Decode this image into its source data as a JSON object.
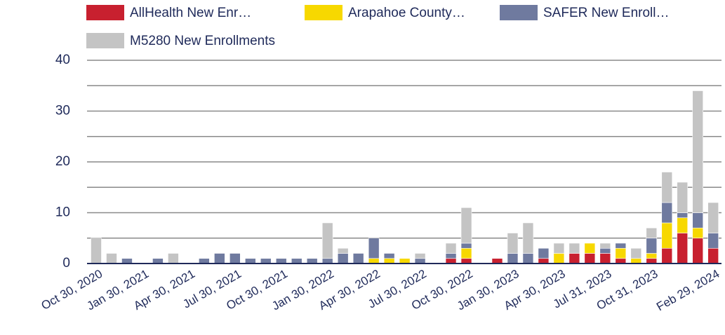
{
  "chart_data": {
    "type": "stacked_bar",
    "categories": [
      "Oct 30, 2020",
      null,
      null,
      "Jan 30, 2021",
      null,
      null,
      "Apr 30, 2021",
      null,
      null,
      "Jul 30, 2021",
      null,
      null,
      "Oct 30, 2021",
      null,
      null,
      "Jan 30, 2022",
      null,
      null,
      "Apr 30, 2022",
      null,
      null,
      "Jul 30, 2022",
      null,
      null,
      "Oct 30, 2022",
      null,
      null,
      "Jan 30, 2023",
      null,
      null,
      "Apr 30, 2023",
      null,
      null,
      "Jul 31, 2023",
      null,
      null,
      "Oct 31, 2023",
      null,
      null,
      null,
      "Feb 29, 2024"
    ],
    "series": [
      {
        "name": "AllHealth New Enr…",
        "color": "#c8202f",
        "values": [
          0,
          0,
          0,
          0,
          0,
          0,
          0,
          0,
          0,
          0,
          0,
          0,
          0,
          0,
          0,
          0,
          0,
          0,
          0,
          0,
          0,
          0,
          0,
          1,
          1,
          0,
          1,
          0,
          0,
          1,
          0,
          2,
          2,
          2,
          1,
          0,
          1,
          3,
          6,
          5,
          3
        ]
      },
      {
        "name": "Arapahoe County…",
        "color": "#f7d800",
        "values": [
          0,
          0,
          0,
          0,
          0,
          0,
          0,
          0,
          0,
          0,
          0,
          0,
          0,
          0,
          0,
          0,
          0,
          0,
          1,
          1,
          1,
          0,
          0,
          0,
          2,
          0,
          0,
          0,
          0,
          0,
          2,
          0,
          2,
          0,
          2,
          1,
          1,
          5,
          3,
          2,
          0
        ]
      },
      {
        "name": "SAFER New Enroll…",
        "color": "#6f7a9f",
        "values": [
          0,
          0,
          1,
          0,
          1,
          0,
          0,
          1,
          2,
          2,
          1,
          1,
          1,
          1,
          1,
          1,
          2,
          2,
          4,
          1,
          0,
          1,
          0,
          1,
          1,
          0,
          0,
          2,
          2,
          2,
          0,
          0,
          0,
          1,
          1,
          0,
          3,
          4,
          1,
          3,
          3
        ]
      },
      {
        "name": "M5280 New Enrollments",
        "color": "#c4c4c4",
        "values": [
          5,
          2,
          0,
          0,
          0,
          2,
          0,
          0,
          0,
          0,
          0,
          0,
          0,
          0,
          0,
          7,
          1,
          0,
          0,
          0,
          0,
          1,
          0,
          2,
          7,
          0,
          0,
          4,
          6,
          0,
          2,
          2,
          0,
          1,
          0,
          2,
          2,
          6,
          6,
          24,
          6
        ]
      }
    ],
    "ylim": [
      0,
      40
    ],
    "yticks": [
      0,
      10,
      20,
      30,
      40
    ],
    "minor_gridlines": [
      5,
      15,
      25,
      35
    ],
    "grid": true,
    "legend": "top"
  }
}
